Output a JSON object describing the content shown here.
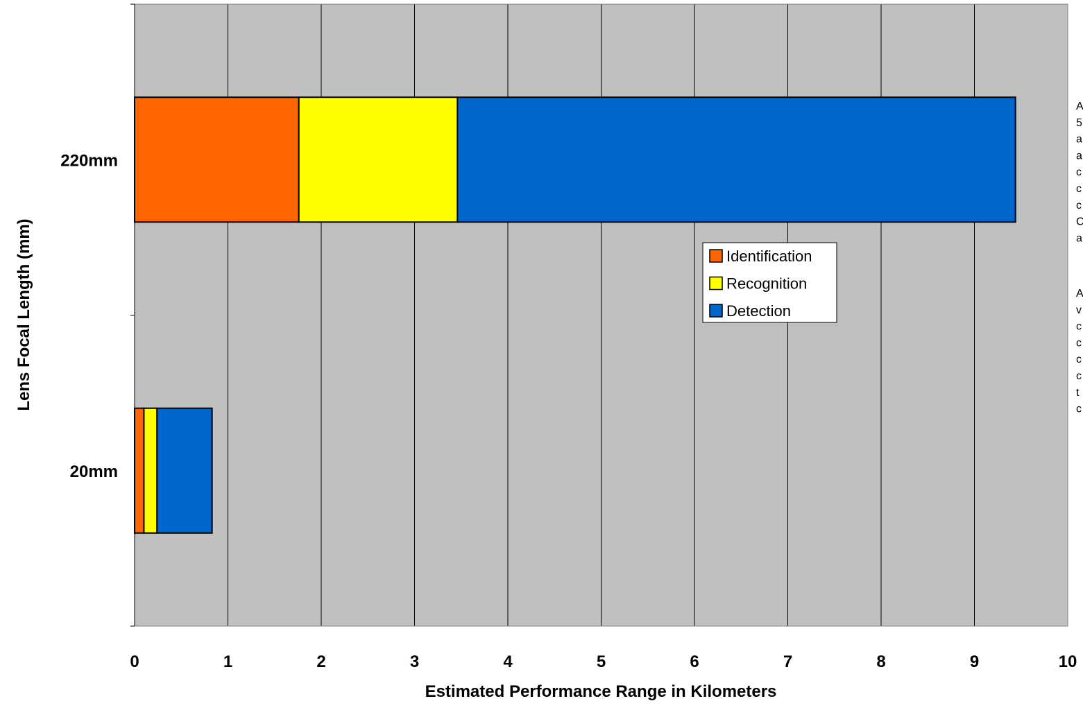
{
  "chart_data": {
    "type": "bar",
    "orientation": "horizontal",
    "stacked": true,
    "categories": [
      "220mm",
      "20mm"
    ],
    "series": [
      {
        "name": "Identification",
        "color": "#FF6600",
        "values": [
          1.76,
          0.1
        ]
      },
      {
        "name": "Recognition",
        "color": "#FFFF00",
        "values": [
          1.7,
          0.14
        ]
      },
      {
        "name": "Detection",
        "color": "#0066CC",
        "values": [
          5.98,
          0.59
        ]
      }
    ],
    "xlabel": "Estimated Performance Range in Kilometers",
    "ylabel": "Lens Focal Length (mm)",
    "xlim": [
      0,
      10
    ],
    "xticks": [
      "0",
      "1",
      "2",
      "3",
      "4",
      "5",
      "6",
      "7",
      "8",
      "9",
      "10"
    ],
    "grid": true,
    "plot_background": "#C0C0C0",
    "legend_position": "center-right"
  },
  "side_note": {
    "paragraph1": [
      "A",
      "5",
      "a",
      "a",
      "c",
      "c",
      "c",
      "C",
      "a"
    ],
    "paragraph2": [
      "A",
      "v",
      "c",
      "c",
      "c",
      "c",
      "t",
      "c"
    ]
  }
}
